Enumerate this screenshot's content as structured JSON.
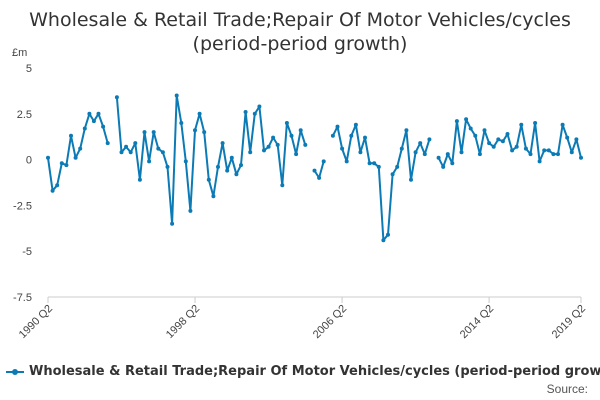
{
  "chart_data": {
    "type": "line",
    "title_line1": "Wholesale & Retail Trade;Repair Of Motor Vehicles/cycles",
    "title_line2": "(period-period growth)",
    "ylabel": "£m",
    "ylim": [
      -7.5,
      5
    ],
    "yticks": [
      "5",
      "2.5",
      "0",
      "-2.5",
      "-5",
      "-7.5"
    ],
    "ytick_values": [
      5,
      2.5,
      0,
      -2.5,
      -5,
      -7.5
    ],
    "xtick_labels": [
      "1990 Q2",
      "1998 Q2",
      "2006 Q2",
      "2014 Q2",
      "2019 Q2"
    ],
    "xtick_index": [
      0,
      32,
      64,
      96,
      116
    ],
    "grid": false,
    "legend_position": "bottom",
    "source_label": "Source:",
    "color": "#0c7bb5",
    "series": [
      {
        "name": "Wholesale & Retail Trade;Repair Of Motor Vehicles/cycles (period-period growth)",
        "values": [
          0.1,
          -1.7,
          -1.4,
          -0.2,
          -0.3,
          1.3,
          0.1,
          0.6,
          1.7,
          2.5,
          2.1,
          2.5,
          1.8,
          0.9,
          null,
          3.4,
          0.4,
          0.7,
          0.4,
          0.9,
          -1.1,
          1.5,
          -0.1,
          1.5,
          0.6,
          0.4,
          -0.4,
          -3.5,
          3.5,
          2.0,
          -0.1,
          -2.8,
          1.6,
          2.5,
          1.5,
          -1.1,
          -2.0,
          -0.4,
          0.9,
          -0.6,
          0.1,
          -0.8,
          -0.3,
          2.6,
          0.4,
          2.5,
          2.9,
          0.5,
          0.7,
          1.2,
          0.8,
          -1.4,
          2.0,
          1.3,
          0.3,
          1.6,
          0.8,
          null,
          -0.6,
          -1.0,
          -0.1,
          null,
          1.3,
          1.8,
          0.6,
          -0.1,
          1.3,
          1.9,
          0.4,
          1.2,
          -0.2,
          -0.2,
          -0.4,
          -4.4,
          -4.1,
          -0.8,
          -0.4,
          0.6,
          1.6,
          -1.1,
          0.4,
          0.9,
          0.3,
          1.1,
          null,
          0.1,
          -0.4,
          0.3,
          -0.2,
          2.1,
          0.4,
          2.2,
          1.7,
          1.3,
          0.3,
          1.6,
          0.9,
          0.7,
          1.1,
          1.0,
          1.4,
          0.5,
          0.7,
          1.9,
          0.6,
          0.3,
          2.0,
          -0.1,
          0.5,
          0.5,
          0.3,
          0.3,
          1.9,
          1.2,
          0.4,
          1.1,
          0.1
        ]
      }
    ]
  }
}
